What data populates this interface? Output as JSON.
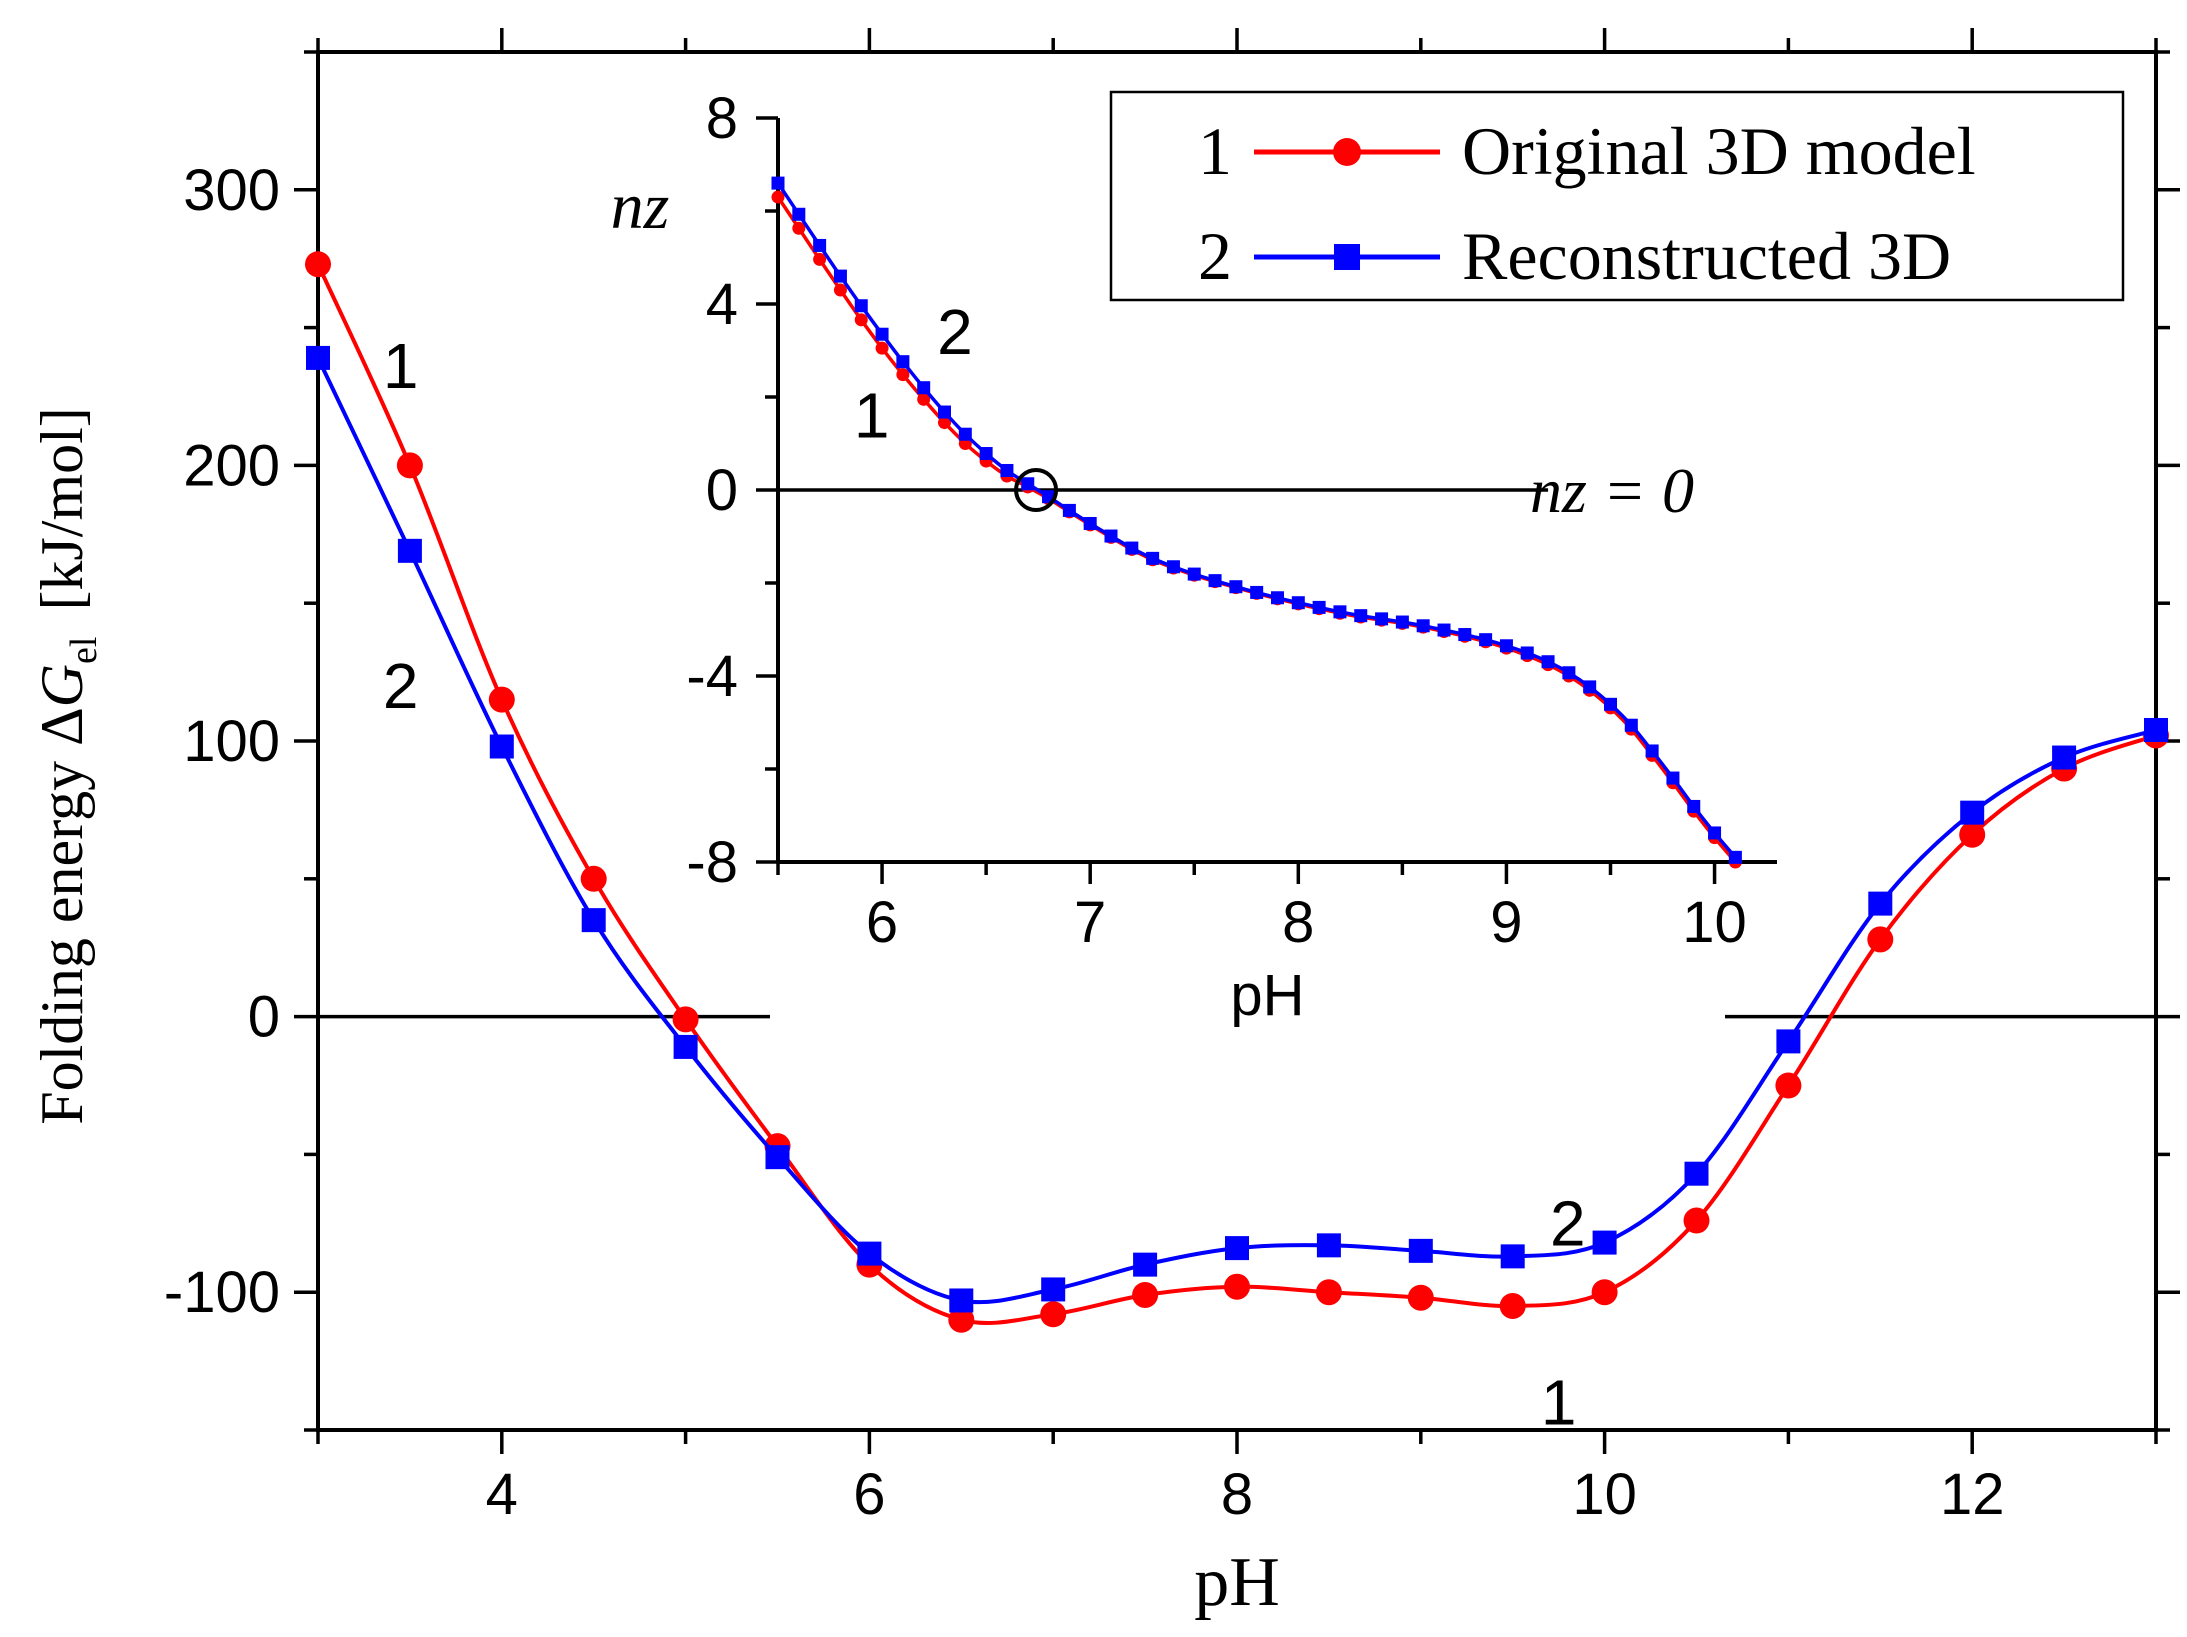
{
  "chart_data": [
    {
      "type": "line",
      "title": "",
      "xlabel": "pH",
      "ylabel": {
        "prefix": "Folding energy Δ",
        "symbol": "G",
        "subscript": "el",
        "unit": "[kJ/mol]"
      },
      "xlim": [
        3,
        13
      ],
      "ylim": [
        -150,
        350
      ],
      "xticks": [
        4,
        6,
        8,
        10,
        12
      ],
      "yticks": [
        -100,
        0,
        100,
        200,
        300
      ],
      "reference_line": {
        "y": 0
      },
      "curve_labels": [
        {
          "text": "1",
          "x": 3.45,
          "y": 236
        },
        {
          "text": "2",
          "x": 3.45,
          "y": 120
        },
        {
          "text": "2",
          "x": 9.8,
          "y": -75
        },
        {
          "text": "1",
          "x": 9.75,
          "y": -140
        }
      ],
      "series": [
        {
          "name": "1",
          "label": "Original 3D model",
          "color": "#ff0000",
          "marker": "circle",
          "x": [
            3.0,
            3.5,
            4.0,
            4.5,
            5.0,
            5.5,
            6.0,
            6.5,
            7.0,
            7.5,
            8.0,
            8.5,
            9.0,
            9.5,
            10.0,
            10.5,
            11.0,
            11.5,
            12.0,
            12.5,
            13.0
          ],
          "y": [
            273,
            200,
            115,
            50,
            -1,
            -47,
            -90,
            -110,
            -108,
            -101,
            -98,
            -100,
            -102,
            -105,
            -100,
            -74,
            -25,
            28,
            66,
            90,
            102
          ]
        },
        {
          "name": "2",
          "label": "Reconstructed 3D",
          "color": "#0000ff",
          "marker": "square",
          "x": [
            3.0,
            3.5,
            4.0,
            4.5,
            5.0,
            5.5,
            6.0,
            6.5,
            7.0,
            7.5,
            8.0,
            8.5,
            9.0,
            9.5,
            10.0,
            10.5,
            11.0,
            11.5,
            12.0,
            12.5,
            13.0
          ],
          "y": [
            239,
            169,
            98,
            35,
            -11,
            -51,
            -86,
            -103,
            -99,
            -90,
            -84,
            -83,
            -85,
            -87,
            -82,
            -57,
            -9,
            41,
            74,
            94,
            104
          ]
        }
      ],
      "legend": {
        "placement": "top-right (inside inset)",
        "entries": [
          {
            "num": "1",
            "label": "Original 3D model"
          },
          {
            "num": "2",
            "label": "Reconstructed 3D"
          }
        ]
      }
    },
    {
      "type": "line",
      "title": "",
      "xlabel": "pH",
      "ylabel": "nz",
      "xlim": [
        5.5,
        10.3
      ],
      "ylim": [
        -8,
        8
      ],
      "xticks": [
        6,
        7,
        8,
        9,
        10
      ],
      "yticks": [
        -8,
        -4,
        0,
        4,
        8
      ],
      "reference_line": {
        "y": 0,
        "xmax": 9.2,
        "label": "nz = 0"
      },
      "isoelectric_marker": {
        "x": 6.74,
        "y": 0
      },
      "curve_labels": [
        {
          "text": "2",
          "x": 6.35,
          "y": 3.4
        },
        {
          "text": "1",
          "x": 5.95,
          "y": 1.6
        }
      ],
      "series": [
        {
          "name": "1",
          "label": "Original 3D model",
          "color": "#ff0000",
          "marker": "circle",
          "knots": [
            [
              5.5,
              6.3
            ],
            [
              5.8,
              4.3
            ],
            [
              6.0,
              3.05
            ],
            [
              6.2,
              1.95
            ],
            [
              6.4,
              1.0
            ],
            [
              6.6,
              0.3
            ],
            [
              6.75,
              -0.05
            ],
            [
              7.0,
              -0.75
            ],
            [
              7.3,
              -1.5
            ],
            [
              7.7,
              -2.1
            ],
            [
              8.2,
              -2.65
            ],
            [
              8.6,
              -2.95
            ],
            [
              9.0,
              -3.4
            ],
            [
              9.3,
              -4.0
            ],
            [
              9.55,
              -4.9
            ],
            [
              9.75,
              -6.0
            ],
            [
              9.95,
              -7.2
            ],
            [
              10.1,
              -8.0
            ]
          ]
        },
        {
          "name": "2",
          "label": "Reconstructed 3D",
          "color": "#0000ff",
          "marker": "square",
          "knots": [
            [
              5.5,
              6.6
            ],
            [
              5.8,
              4.6
            ],
            [
              6.0,
              3.35
            ],
            [
              6.2,
              2.2
            ],
            [
              6.4,
              1.2
            ],
            [
              6.6,
              0.42
            ],
            [
              6.75,
              0.0
            ],
            [
              7.0,
              -0.72
            ],
            [
              7.3,
              -1.47
            ],
            [
              7.7,
              -2.08
            ],
            [
              8.2,
              -2.62
            ],
            [
              8.6,
              -2.92
            ],
            [
              9.0,
              -3.35
            ],
            [
              9.3,
              -3.93
            ],
            [
              9.55,
              -4.82
            ],
            [
              9.75,
              -5.9
            ],
            [
              9.95,
              -7.1
            ],
            [
              10.1,
              -7.9
            ]
          ]
        }
      ]
    }
  ]
}
